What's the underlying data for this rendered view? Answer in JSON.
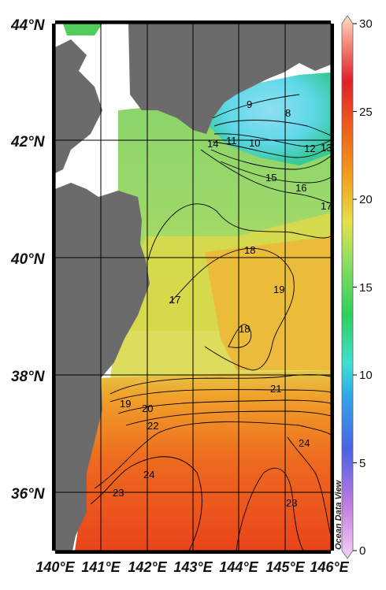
{
  "map": {
    "lat_labels": [
      "44°N",
      "42°N",
      "40°N",
      "38°N",
      "36°N"
    ],
    "lon_labels": [
      "140°E",
      "141°E",
      "142°E",
      "143°E",
      "144°E",
      "145°E",
      "146°E"
    ],
    "contour_labels": [
      "9",
      "8",
      "11",
      "10",
      "14",
      "12",
      "13",
      "15",
      "16",
      "17",
      "18",
      "19",
      "17",
      "18",
      "21",
      "19",
      "20",
      "22",
      "24",
      "23",
      "24",
      "23"
    ],
    "watermark": "Ocean Data View"
  },
  "colorbar": {
    "ticks": [
      "30",
      "25",
      "20",
      "15",
      "10",
      "5",
      "0"
    ],
    "min": 0,
    "max": 30
  },
  "colors": {
    "land": "#6b6b6b",
    "cold": "#4fd6e8",
    "warm": "#e9341c"
  }
}
